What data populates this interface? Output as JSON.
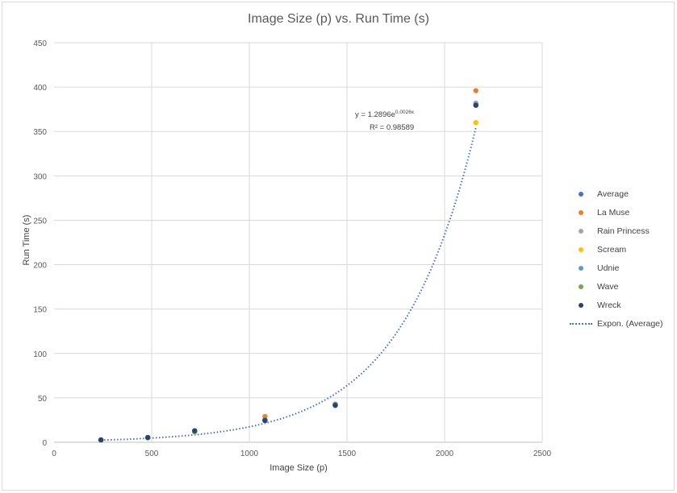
{
  "chart_data": {
    "type": "scatter",
    "title": "Image Size (p) vs. Run Time (s)",
    "xlabel": "Image Size (p)",
    "ylabel": "Run Time (s)",
    "xlim": [
      0,
      2500
    ],
    "ylim": [
      0,
      450
    ],
    "x_ticks": [
      "0",
      "500",
      "1000",
      "1500",
      "2000",
      "2500"
    ],
    "y_ticks": [
      "0",
      "50",
      "100",
      "150",
      "200",
      "250",
      "300",
      "350",
      "400",
      "450"
    ],
    "grid": true,
    "legend_position": "right",
    "series": [
      {
        "name": "Average",
        "color": "#4472c4",
        "points": [
          [
            240,
            2.6
          ],
          [
            480,
            5.3
          ],
          [
            720,
            12.0
          ],
          [
            1080,
            25.0
          ],
          [
            1440,
            42.5
          ],
          [
            2160,
            380.5
          ]
        ]
      },
      {
        "name": "La Muse",
        "color": "#ed7d31",
        "points": [
          [
            240,
            2.7
          ],
          [
            480,
            5.5
          ],
          [
            720,
            12.5
          ],
          [
            1080,
            29.0
          ],
          [
            1440,
            43.0
          ],
          [
            2160,
            396.0
          ]
        ]
      },
      {
        "name": "Rain Princess",
        "color": "#a5a5a5",
        "points": [
          [
            240,
            2.6
          ],
          [
            480,
            5.3
          ],
          [
            720,
            12.0
          ],
          [
            1080,
            25.5
          ],
          [
            1440,
            43.0
          ],
          [
            2160,
            382.0
          ]
        ]
      },
      {
        "name": "Scream",
        "color": "#ffc000",
        "points": [
          [
            240,
            2.5
          ],
          [
            480,
            5.0
          ],
          [
            720,
            11.5
          ],
          [
            1080,
            24.0
          ],
          [
            1440,
            42.0
          ],
          [
            2160,
            360.0
          ]
        ]
      },
      {
        "name": "Udnie",
        "color": "#5b9bd5",
        "points": [
          [
            240,
            2.6
          ],
          [
            480,
            5.2
          ],
          [
            720,
            12.0
          ],
          [
            1080,
            25.0
          ],
          [
            1440,
            42.5
          ],
          [
            2160,
            380.0
          ]
        ]
      },
      {
        "name": "Wave",
        "color": "#70ad47",
        "points": [
          [
            240,
            2.6
          ],
          [
            480,
            5.2
          ],
          [
            720,
            12.0
          ],
          [
            1080,
            25.0
          ],
          [
            1440,
            42.5
          ],
          [
            2160,
            380.0
          ]
        ]
      },
      {
        "name": "Wreck",
        "color": "#264478",
        "points": [
          [
            240,
            2.6
          ],
          [
            480,
            5.3
          ],
          [
            720,
            13.0
          ],
          [
            1080,
            24.5
          ],
          [
            1440,
            41.5
          ],
          [
            2160,
            379.5
          ]
        ]
      }
    ],
    "trendline": {
      "name": "Expon.  (Average)",
      "type": "exponential",
      "color": "#4472c4",
      "a": 1.2896,
      "b": 0.0026,
      "x_range": [
        240,
        2160
      ],
      "equation_prefix": "y = 1.2896e",
      "equation_exponent": "0.0026x",
      "r_squared": "R² = 0.98589"
    }
  }
}
